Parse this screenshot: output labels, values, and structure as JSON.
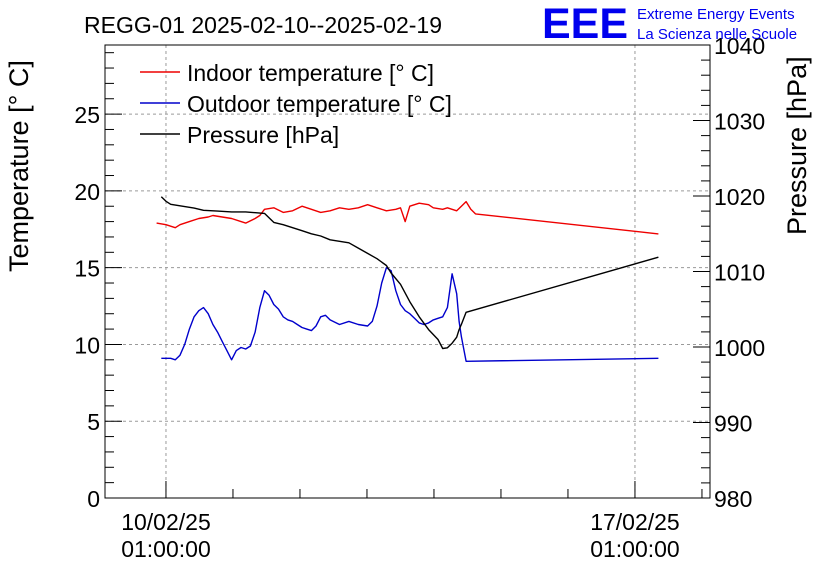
{
  "chart_data": {
    "type": "line",
    "title": "REGG-01 2025-02-10--2025-02-19",
    "logo": {
      "text": "EEE",
      "line1": "Extreme Energy Events",
      "line2": "La Scienza nelle Scuole",
      "color": "#0000ee"
    },
    "ylabel": "Temperature [° C]",
    "y2label": "Pressure [hPa]",
    "ylim": [
      0,
      29.5
    ],
    "y2lim": [
      980,
      1040
    ],
    "xlim": [
      -0.13,
      1.16
    ],
    "yticks": [
      "0",
      "5",
      "10",
      "15",
      "20",
      "25"
    ],
    "y2ticks": [
      "980",
      "990",
      "1000",
      "1010",
      "1020",
      "1030",
      "1040"
    ],
    "xticks": [
      {
        "x": 0,
        "line1": "10/02/25",
        "line2": "01:00:00"
      },
      {
        "x": 1,
        "line1": "17/02/25",
        "line2": "01:00:00"
      }
    ],
    "grid": true,
    "legend": {
      "position": "top-left"
    },
    "series": [
      {
        "name": "Indoor temperature [° C]",
        "color": "#ee0000",
        "axis": "left",
        "points": [
          [
            -0.02,
            17.9
          ],
          [
            0.0,
            17.8
          ],
          [
            0.02,
            17.6
          ],
          [
            0.03,
            17.8
          ],
          [
            0.05,
            18.0
          ],
          [
            0.07,
            18.2
          ],
          [
            0.09,
            18.3
          ],
          [
            0.1,
            18.4
          ],
          [
            0.12,
            18.3
          ],
          [
            0.14,
            18.2
          ],
          [
            0.16,
            18.0
          ],
          [
            0.17,
            17.9
          ],
          [
            0.19,
            18.2
          ],
          [
            0.2,
            18.4
          ],
          [
            0.21,
            18.8
          ],
          [
            0.23,
            18.9
          ],
          [
            0.25,
            18.6
          ],
          [
            0.27,
            18.7
          ],
          [
            0.29,
            19.0
          ],
          [
            0.31,
            18.8
          ],
          [
            0.33,
            18.6
          ],
          [
            0.35,
            18.7
          ],
          [
            0.37,
            18.9
          ],
          [
            0.39,
            18.8
          ],
          [
            0.41,
            18.9
          ],
          [
            0.43,
            19.1
          ],
          [
            0.45,
            18.9
          ],
          [
            0.47,
            18.7
          ],
          [
            0.49,
            18.8
          ],
          [
            0.5,
            18.9
          ],
          [
            0.51,
            18.0
          ],
          [
            0.52,
            19.0
          ],
          [
            0.54,
            19.2
          ],
          [
            0.56,
            19.1
          ],
          [
            0.57,
            18.9
          ],
          [
            0.59,
            18.8
          ],
          [
            0.6,
            18.9
          ],
          [
            0.62,
            18.7
          ],
          [
            0.63,
            19.0
          ],
          [
            0.64,
            19.3
          ],
          [
            0.65,
            18.8
          ],
          [
            0.66,
            18.5
          ],
          [
            1.05,
            17.2
          ]
        ]
      },
      {
        "name": "Outdoor temperature [° C]",
        "color": "#0000cc",
        "axis": "left",
        "points": [
          [
            -0.01,
            9.1
          ],
          [
            0.01,
            9.1
          ],
          [
            0.02,
            9.0
          ],
          [
            0.03,
            9.3
          ],
          [
            0.04,
            10.0
          ],
          [
            0.05,
            11.0
          ],
          [
            0.06,
            11.8
          ],
          [
            0.07,
            12.2
          ],
          [
            0.08,
            12.4
          ],
          [
            0.09,
            12.0
          ],
          [
            0.1,
            11.3
          ],
          [
            0.11,
            10.8
          ],
          [
            0.12,
            10.2
          ],
          [
            0.13,
            9.6
          ],
          [
            0.14,
            9.0
          ],
          [
            0.15,
            9.6
          ],
          [
            0.16,
            9.8
          ],
          [
            0.17,
            9.7
          ],
          [
            0.18,
            9.9
          ],
          [
            0.19,
            10.8
          ],
          [
            0.2,
            12.4
          ],
          [
            0.21,
            13.5
          ],
          [
            0.22,
            13.2
          ],
          [
            0.23,
            12.6
          ],
          [
            0.24,
            12.3
          ],
          [
            0.25,
            11.8
          ],
          [
            0.26,
            11.6
          ],
          [
            0.27,
            11.5
          ],
          [
            0.28,
            11.3
          ],
          [
            0.29,
            11.1
          ],
          [
            0.3,
            11.0
          ],
          [
            0.31,
            10.9
          ],
          [
            0.32,
            11.2
          ],
          [
            0.33,
            11.8
          ],
          [
            0.34,
            11.9
          ],
          [
            0.35,
            11.6
          ],
          [
            0.37,
            11.3
          ],
          [
            0.39,
            11.5
          ],
          [
            0.41,
            11.3
          ],
          [
            0.43,
            11.2
          ],
          [
            0.44,
            11.5
          ],
          [
            0.45,
            12.5
          ],
          [
            0.46,
            14.0
          ],
          [
            0.47,
            15.0
          ],
          [
            0.48,
            14.8
          ],
          [
            0.49,
            13.5
          ],
          [
            0.5,
            12.6
          ],
          [
            0.51,
            12.2
          ],
          [
            0.52,
            12.0
          ],
          [
            0.53,
            11.7
          ],
          [
            0.54,
            11.4
          ],
          [
            0.55,
            11.3
          ],
          [
            0.56,
            11.4
          ],
          [
            0.57,
            11.6
          ],
          [
            0.58,
            11.7
          ],
          [
            0.59,
            11.8
          ],
          [
            0.6,
            12.4
          ],
          [
            0.61,
            14.6
          ],
          [
            0.62,
            13.3
          ],
          [
            0.625,
            11.5
          ],
          [
            0.63,
            10.5
          ],
          [
            0.64,
            8.9
          ],
          [
            1.05,
            9.1
          ]
        ]
      },
      {
        "name": "Pressure [hPa]",
        "color": "#000000",
        "axis": "right",
        "points": [
          [
            -0.01,
            1019.9
          ],
          [
            0.0,
            1019.3
          ],
          [
            0.01,
            1018.9
          ],
          [
            0.03,
            1018.7
          ],
          [
            0.06,
            1018.4
          ],
          [
            0.08,
            1018.1
          ],
          [
            0.11,
            1018.0
          ],
          [
            0.14,
            1017.9
          ],
          [
            0.17,
            1017.9
          ],
          [
            0.21,
            1017.7
          ],
          [
            0.23,
            1016.5
          ],
          [
            0.25,
            1016.2
          ],
          [
            0.27,
            1015.8
          ],
          [
            0.29,
            1015.4
          ],
          [
            0.31,
            1015.0
          ],
          [
            0.33,
            1014.7
          ],
          [
            0.35,
            1014.2
          ],
          [
            0.37,
            1014.0
          ],
          [
            0.39,
            1013.8
          ],
          [
            0.41,
            1013.1
          ],
          [
            0.43,
            1012.4
          ],
          [
            0.45,
            1011.7
          ],
          [
            0.47,
            1010.8
          ],
          [
            0.48,
            1009.8
          ],
          [
            0.5,
            1008.3
          ],
          [
            0.52,
            1006.0
          ],
          [
            0.54,
            1004.0
          ],
          [
            0.56,
            1002.3
          ],
          [
            0.58,
            1001.0
          ],
          [
            0.59,
            999.8
          ],
          [
            0.6,
            999.9
          ],
          [
            0.61,
            1000.5
          ],
          [
            0.62,
            1001.3
          ],
          [
            0.625,
            1002.3
          ],
          [
            0.63,
            1003.0
          ],
          [
            0.64,
            1004.6
          ],
          [
            1.05,
            1011.9
          ]
        ]
      }
    ]
  }
}
